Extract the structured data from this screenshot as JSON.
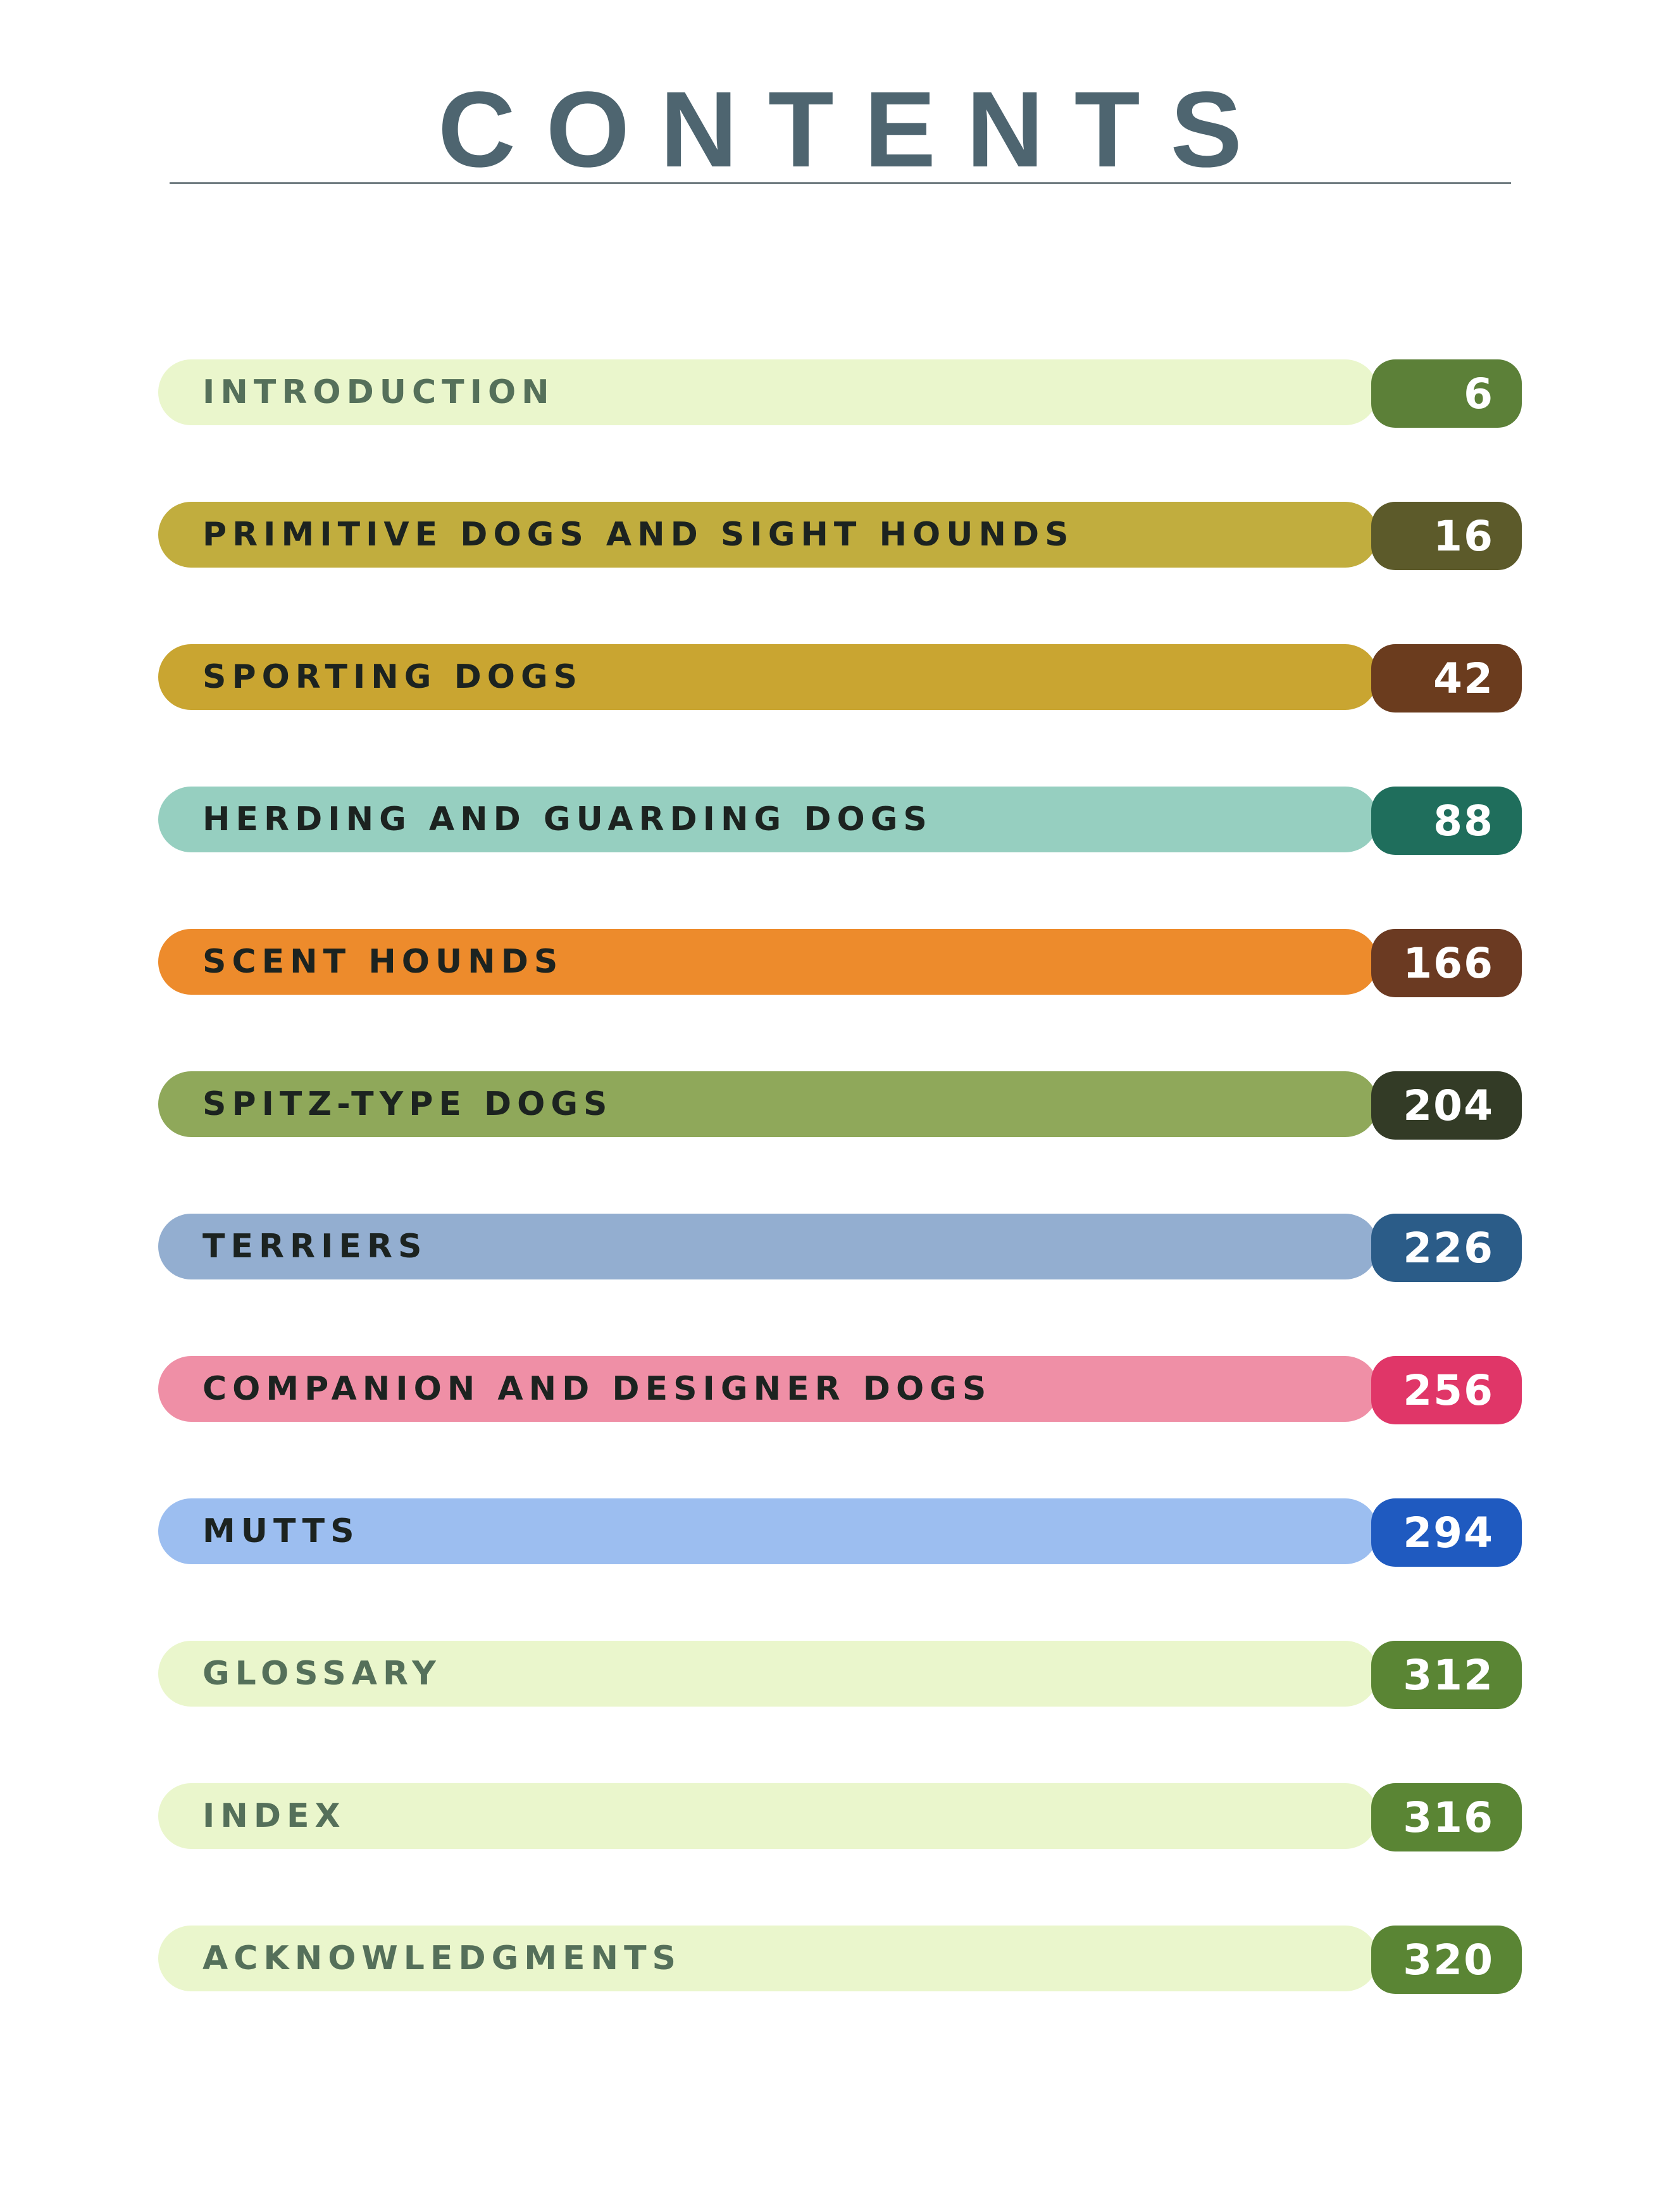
{
  "header": {
    "title": "CONTENTS"
  },
  "toc": {
    "entries": [
      {
        "label": "INTRODUCTION",
        "page": "6",
        "bar_color": "#eaf6cc",
        "page_color": "#5c8038",
        "label_color": "#55705a"
      },
      {
        "label": "PRIMITIVE DOGS AND SIGHT HOUNDS",
        "page": "16",
        "bar_color": "#c1ad3e",
        "page_color": "#5c5a2a",
        "label_color": "#1c2320"
      },
      {
        "label": "SPORTING DOGS",
        "page": "42",
        "bar_color": "#c9a531",
        "page_color": "#6b3c1e",
        "label_color": "#1c2320"
      },
      {
        "label": "HERDING AND GUARDING DOGS",
        "page": "88",
        "bar_color": "#96cfc0",
        "page_color": "#1f6e5c",
        "label_color": "#1c2320"
      },
      {
        "label": "SCENT HOUNDS",
        "page": "166",
        "bar_color": "#ed8b2c",
        "page_color": "#6b3a22",
        "label_color": "#1c2320"
      },
      {
        "label": "SPITZ-TYPE DOGS",
        "page": "204",
        "bar_color": "#8fa85a",
        "page_color": "#333b26",
        "label_color": "#1c2320"
      },
      {
        "label": "TERRIERS",
        "page": "226",
        "bar_color": "#93aed0",
        "page_color": "#2b5c88",
        "label_color": "#1c2320"
      },
      {
        "label": "COMPANION AND DESIGNER DOGS",
        "page": "256",
        "bar_color": "#ef8fa6",
        "page_color": "#e03668",
        "label_color": "#1c2320"
      },
      {
        "label": "MUTTS",
        "page": "294",
        "bar_color": "#9cbef0",
        "page_color": "#1f5ac0",
        "label_color": "#1c2320"
      },
      {
        "label": "GLOSSARY",
        "page": "312",
        "bar_color": "#eaf6cc",
        "page_color": "#5a8534",
        "label_color": "#55705a"
      },
      {
        "label": "INDEX",
        "page": "316",
        "bar_color": "#eaf6cc",
        "page_color": "#5a8534",
        "label_color": "#55705a"
      },
      {
        "label": "ACKNOWLEDGMENTS",
        "page": "320",
        "bar_color": "#eaf6cc",
        "page_color": "#5a8534",
        "label_color": "#55705a"
      }
    ]
  }
}
